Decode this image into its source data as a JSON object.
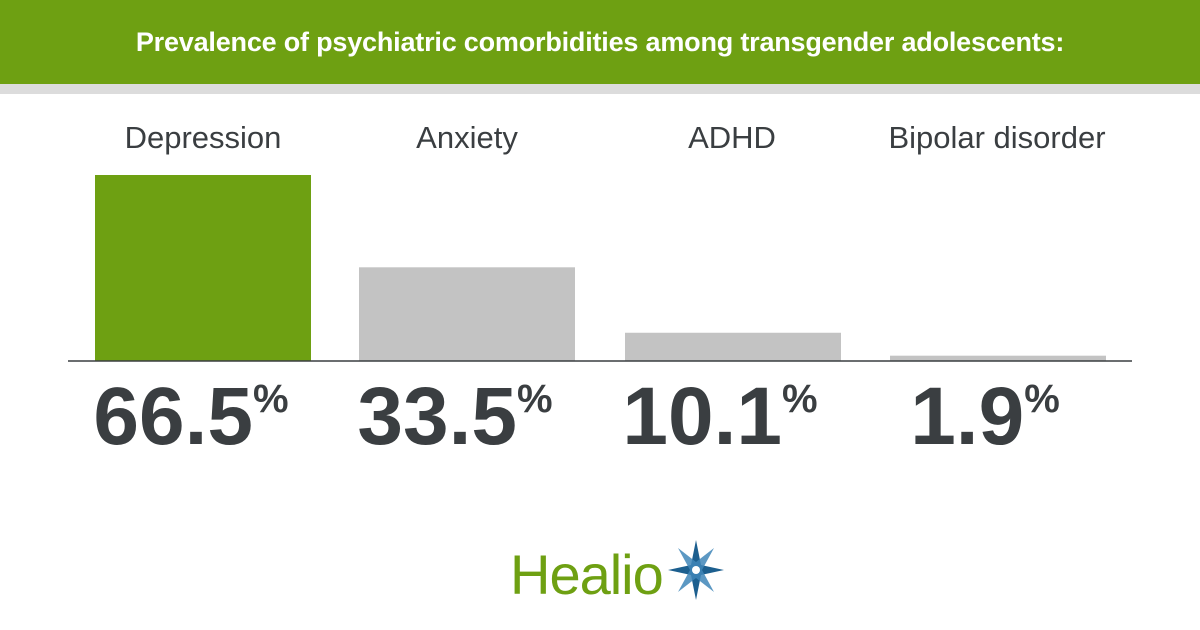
{
  "header": {
    "title": "Prevalence of psychiatric comorbidities among transgender adolescents:"
  },
  "chart_data": {
    "type": "bar",
    "title": "Prevalence of psychiatric comorbidities among transgender adolescents:",
    "categories": [
      "Depression",
      "Anxiety",
      "ADHD",
      "Bipolar disorder"
    ],
    "values": [
      66.5,
      33.5,
      10.1,
      1.9
    ],
    "value_labels": [
      "66.5",
      "33.5",
      "10.1",
      "1.9"
    ],
    "unit": "%",
    "ylim": [
      0,
      66.5
    ],
    "grid": false,
    "colors": [
      "#6ea012",
      "#c3c3c3",
      "#c3c3c3",
      "#c3c3c3"
    ]
  },
  "logo": {
    "text": "Healio",
    "primary_color": "#6ea012",
    "star_color": "#1c5f8f",
    "icon": "star-icon"
  }
}
